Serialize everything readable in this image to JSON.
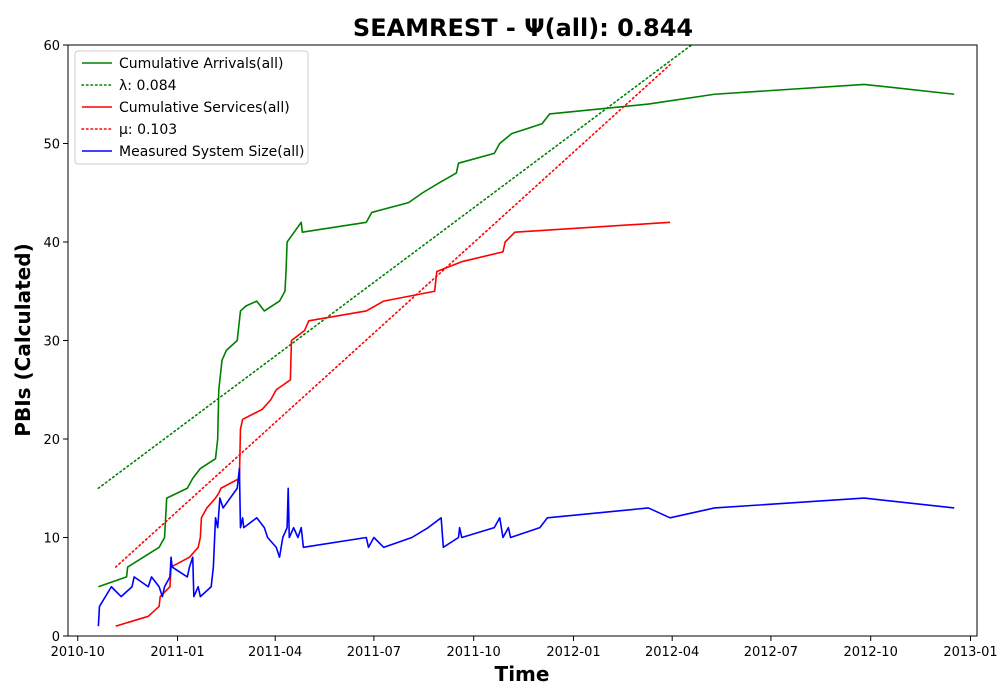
{
  "chart_data": {
    "type": "line",
    "title": "SEAMREST -  Ψ(all): 0.844",
    "xlabel": "Time",
    "ylabel": "PBIs (Calculated)",
    "xlim": [
      "2010-09-22",
      "2013-01-07"
    ],
    "ylim": [
      0,
      60
    ],
    "x_ticks": [
      "2010-10",
      "2011-01",
      "2011-04",
      "2011-07",
      "2011-10",
      "2012-01",
      "2012-04",
      "2012-07",
      "2012-10",
      "2013-01"
    ],
    "y_ticks": [
      0,
      10,
      20,
      30,
      40,
      50,
      60
    ],
    "grid": false,
    "legend_position": "top-left",
    "series": [
      {
        "name": "Cumulative Arrivals(all)",
        "color": "#008000",
        "style": "solid",
        "points": [
          [
            "2010-10-20",
            5
          ],
          [
            "2010-11-15",
            6
          ],
          [
            "2010-11-16",
            7
          ],
          [
            "2010-12-15",
            9
          ],
          [
            "2010-12-20",
            10
          ],
          [
            "2010-12-21",
            12
          ],
          [
            "2010-12-22",
            14
          ],
          [
            "2011-01-10",
            15
          ],
          [
            "2011-01-15",
            16
          ],
          [
            "2011-01-22",
            17
          ],
          [
            "2011-02-05",
            18
          ],
          [
            "2011-02-07",
            20
          ],
          [
            "2011-02-08",
            25
          ],
          [
            "2011-02-10",
            27
          ],
          [
            "2011-02-11",
            28
          ],
          [
            "2011-02-15",
            29
          ],
          [
            "2011-02-25",
            30
          ],
          [
            "2011-02-28",
            33
          ],
          [
            "2011-03-05",
            33.5
          ],
          [
            "2011-03-15",
            34
          ],
          [
            "2011-03-22",
            33
          ],
          [
            "2011-04-05",
            34
          ],
          [
            "2011-04-10",
            35
          ],
          [
            "2011-04-11",
            37
          ],
          [
            "2011-04-12",
            40
          ],
          [
            "2011-04-25",
            42
          ],
          [
            "2011-04-26",
            41
          ],
          [
            "2011-06-24",
            42
          ],
          [
            "2011-06-29",
            43
          ],
          [
            "2011-08-02",
            44
          ],
          [
            "2011-08-15",
            45
          ],
          [
            "2011-08-30",
            46
          ],
          [
            "2011-09-15",
            47
          ],
          [
            "2011-09-17",
            48
          ],
          [
            "2011-10-20",
            49
          ],
          [
            "2011-10-25",
            50
          ],
          [
            "2011-11-05",
            51
          ],
          [
            "2011-12-03",
            52
          ],
          [
            "2011-12-10",
            53
          ],
          [
            "2012-03-10",
            54
          ],
          [
            "2012-05-10",
            55
          ],
          [
            "2012-09-25",
            56
          ],
          [
            "2012-12-17",
            55
          ]
        ]
      },
      {
        "name": "λ: 0.084",
        "color": "#008000",
        "style": "dotted",
        "points": [
          [
            "2010-10-20",
            15
          ],
          [
            "2012-05-07",
            61.5
          ]
        ]
      },
      {
        "name": "Cumulative Services(all)",
        "color": "#ff0000",
        "style": "solid",
        "points": [
          [
            "2010-11-05",
            1
          ],
          [
            "2010-12-05",
            2
          ],
          [
            "2010-12-15",
            3
          ],
          [
            "2010-12-16",
            4
          ],
          [
            "2010-12-25",
            5
          ],
          [
            "2010-12-26",
            7
          ],
          [
            "2011-01-12",
            8
          ],
          [
            "2011-01-20",
            9
          ],
          [
            "2011-01-22",
            10
          ],
          [
            "2011-01-23",
            12
          ],
          [
            "2011-01-28",
            13
          ],
          [
            "2011-02-05",
            14
          ],
          [
            "2011-02-08",
            14.5
          ],
          [
            "2011-02-10",
            15
          ],
          [
            "2011-02-27",
            16
          ],
          [
            "2011-02-28",
            21
          ],
          [
            "2011-03-02",
            22
          ],
          [
            "2011-03-20",
            23
          ],
          [
            "2011-03-28",
            24
          ],
          [
            "2011-04-02",
            25
          ],
          [
            "2011-04-15",
            26
          ],
          [
            "2011-04-16",
            30
          ],
          [
            "2011-04-28",
            31
          ],
          [
            "2011-05-02",
            32
          ],
          [
            "2011-06-24",
            33
          ],
          [
            "2011-07-10",
            34
          ],
          [
            "2011-08-26",
            35
          ],
          [
            "2011-08-28",
            37
          ],
          [
            "2011-09-20",
            38
          ],
          [
            "2011-10-28",
            39
          ],
          [
            "2011-10-30",
            40
          ],
          [
            "2011-11-08",
            41
          ],
          [
            "2012-03-30",
            42
          ]
        ]
      },
      {
        "name": "μ: 0.103",
        "color": "#ff0000",
        "style": "dotted",
        "points": [
          [
            "2010-11-05",
            7
          ],
          [
            "2012-03-30",
            58
          ]
        ]
      },
      {
        "name": "Measured System Size(all)",
        "color": "#0000ff",
        "style": "solid",
        "points": [
          [
            "2010-10-20",
            1
          ],
          [
            "2010-10-21",
            3
          ],
          [
            "2010-11-01",
            5
          ],
          [
            "2010-11-10",
            4
          ],
          [
            "2010-11-20",
            5
          ],
          [
            "2010-11-22",
            6
          ],
          [
            "2010-12-05",
            5
          ],
          [
            "2010-12-08",
            6
          ],
          [
            "2010-12-15",
            5
          ],
          [
            "2010-12-18",
            4
          ],
          [
            "2010-12-20",
            5
          ],
          [
            "2010-12-25",
            6
          ],
          [
            "2010-12-26",
            8
          ],
          [
            "2010-12-27",
            7
          ],
          [
            "2011-01-10",
            6
          ],
          [
            "2011-01-12",
            7
          ],
          [
            "2011-01-15",
            8
          ],
          [
            "2011-01-16",
            4
          ],
          [
            "2011-01-20",
            5
          ],
          [
            "2011-01-22",
            4
          ],
          [
            "2011-02-01",
            5
          ],
          [
            "2011-02-03",
            7
          ],
          [
            "2011-02-05",
            12
          ],
          [
            "2011-02-07",
            11
          ],
          [
            "2011-02-09",
            14
          ],
          [
            "2011-02-12",
            13
          ],
          [
            "2011-02-25",
            15
          ],
          [
            "2011-02-27",
            17
          ],
          [
            "2011-02-28",
            11
          ],
          [
            "2011-03-02",
            12
          ],
          [
            "2011-03-03",
            11
          ],
          [
            "2011-03-15",
            12
          ],
          [
            "2011-03-22",
            11
          ],
          [
            "2011-03-25",
            10
          ],
          [
            "2011-04-02",
            9
          ],
          [
            "2011-04-05",
            8
          ],
          [
            "2011-04-08",
            10
          ],
          [
            "2011-04-12",
            11
          ],
          [
            "2011-04-13",
            15
          ],
          [
            "2011-04-14",
            10
          ],
          [
            "2011-04-18",
            11
          ],
          [
            "2011-04-22",
            10
          ],
          [
            "2011-04-25",
            11
          ],
          [
            "2011-04-27",
            9
          ],
          [
            "2011-06-24",
            10
          ],
          [
            "2011-06-26",
            9
          ],
          [
            "2011-07-01",
            10
          ],
          [
            "2011-07-10",
            9
          ],
          [
            "2011-08-05",
            10
          ],
          [
            "2011-08-20",
            11
          ],
          [
            "2011-09-01",
            12
          ],
          [
            "2011-09-03",
            9
          ],
          [
            "2011-09-17",
            10
          ],
          [
            "2011-09-18",
            11
          ],
          [
            "2011-09-20",
            10
          ],
          [
            "2011-10-20",
            11
          ],
          [
            "2011-10-25",
            12
          ],
          [
            "2011-10-28",
            10
          ],
          [
            "2011-11-02",
            11
          ],
          [
            "2011-11-04",
            10
          ],
          [
            "2011-12-01",
            11
          ],
          [
            "2011-12-08",
            12
          ],
          [
            "2012-03-10",
            13
          ],
          [
            "2012-03-30",
            12
          ],
          [
            "2012-05-10",
            13
          ],
          [
            "2012-09-25",
            14
          ],
          [
            "2012-12-17",
            13
          ]
        ]
      }
    ]
  }
}
